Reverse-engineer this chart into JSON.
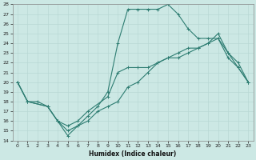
{
  "xlabel": "Humidex (Indice chaleur)",
  "bg_color": "#cce8e4",
  "line_color": "#2e7d72",
  "grid_color": "#b8d8d4",
  "ylim": [
    14,
    28
  ],
  "xlim": [
    -0.5,
    23.5
  ],
  "yticks": [
    14,
    15,
    16,
    17,
    18,
    19,
    20,
    21,
    22,
    23,
    24,
    25,
    26,
    27,
    28
  ],
  "xticks": [
    0,
    1,
    2,
    3,
    4,
    5,
    6,
    7,
    8,
    9,
    10,
    11,
    12,
    13,
    14,
    15,
    16,
    17,
    18,
    19,
    20,
    21,
    22,
    23
  ],
  "line1_x": [
    0,
    1,
    2,
    3,
    4,
    5,
    6,
    7,
    8,
    9,
    10,
    11,
    12,
    13,
    14,
    15,
    16,
    17,
    18,
    19,
    20,
    21,
    22,
    23
  ],
  "line1_y": [
    20,
    18,
    18,
    17.5,
    16,
    15,
    15.5,
    16,
    17,
    17.5,
    18,
    19.5,
    20,
    21,
    22,
    22.5,
    23,
    23.5,
    23.5,
    24,
    24.5,
    23,
    22,
    20
  ],
  "line2_x": [
    0,
    1,
    3,
    4,
    5,
    6,
    7,
    8,
    9,
    10,
    11,
    12,
    13,
    14,
    15,
    16,
    17,
    18,
    19,
    20,
    21,
    22,
    23
  ],
  "line2_y": [
    20,
    18,
    17.5,
    16,
    14.5,
    15.5,
    16.5,
    17.5,
    19,
    24,
    27.5,
    27.5,
    27.5,
    27.5,
    28,
    27,
    25.5,
    24.5,
    24.5,
    24.5,
    22.5,
    21.5,
    20
  ],
  "line3_x": [
    0,
    1,
    3,
    4,
    5,
    6,
    7,
    9,
    10,
    11,
    12,
    13,
    14,
    15,
    16,
    17,
    18,
    19,
    20,
    21,
    22,
    23
  ],
  "line3_y": [
    20,
    18,
    17.5,
    16,
    15.5,
    16,
    17,
    18.5,
    21,
    21.5,
    21.5,
    21.5,
    22,
    22.5,
    22.5,
    23,
    23.5,
    24,
    25,
    23,
    21.5,
    20
  ]
}
